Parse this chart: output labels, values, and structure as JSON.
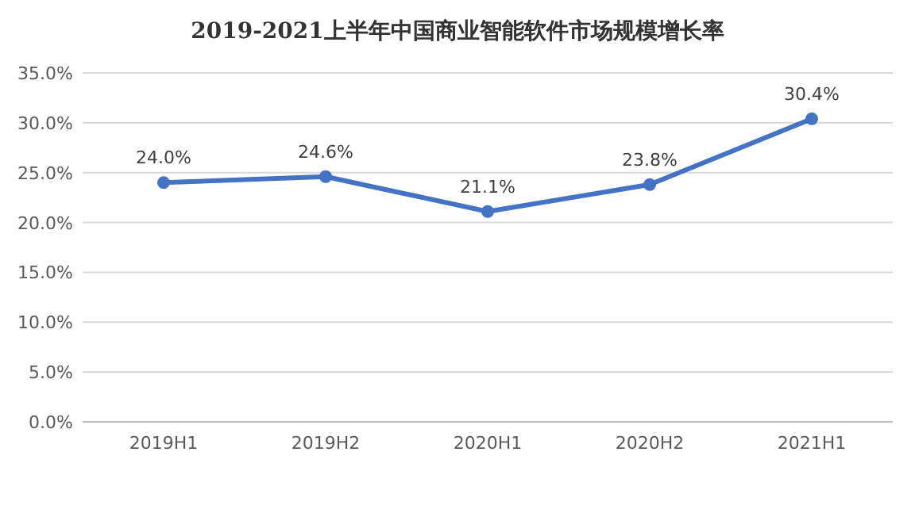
{
  "chart_data": {
    "type": "line",
    "title": "2019-2021上半年中国商业智能软件市场规模增长率",
    "categories": [
      "2019H1",
      "2019H2",
      "2020H1",
      "2020H2",
      "2021H1"
    ],
    "series": [
      {
        "color": "#4472c4",
        "values": [
          24.0,
          24.6,
          21.1,
          23.8,
          30.4
        ],
        "value_labels": [
          "24.0%",
          "24.6%",
          "21.1%",
          "23.8%",
          "30.4%"
        ]
      }
    ],
    "ylim": [
      0,
      35
    ],
    "yticks": [
      {
        "value": 0,
        "label": "0.0%"
      },
      {
        "value": 5,
        "label": "5.0%"
      },
      {
        "value": 10,
        "label": "10.0%"
      },
      {
        "value": 15,
        "label": "15.0%"
      },
      {
        "value": 20,
        "label": "20.0%"
      },
      {
        "value": 25,
        "label": "25.0%"
      },
      {
        "value": 30,
        "label": "30.0%"
      },
      {
        "value": 35,
        "label": "35.0%"
      }
    ],
    "grid": "y",
    "marker": "circle",
    "line_style": "solid"
  }
}
